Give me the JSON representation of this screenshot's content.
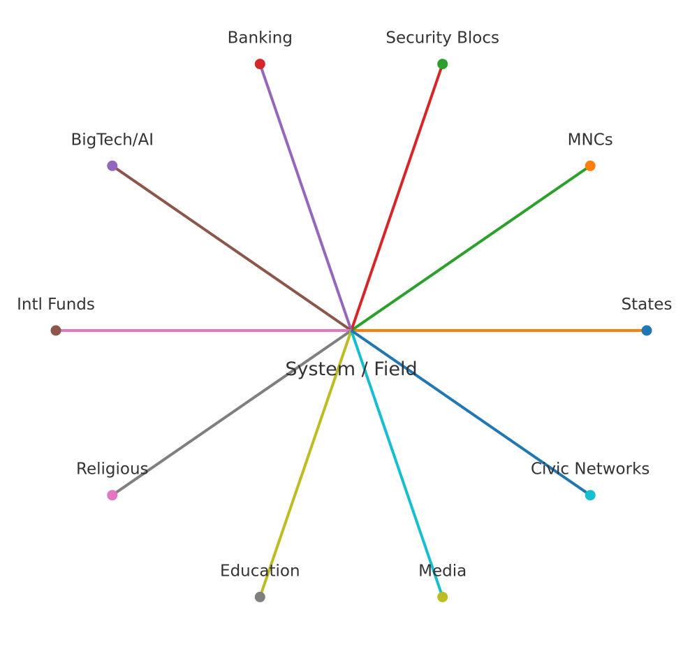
{
  "center": {
    "label": "System / Field"
  },
  "nodes": [
    {
      "id": "states",
      "label": "States",
      "dot_color": "#1f77b4",
      "line_color": "#ff7f0e"
    },
    {
      "id": "mncs",
      "label": "MNCs",
      "dot_color": "#ff7f0e",
      "line_color": "#2ca02c"
    },
    {
      "id": "security-blocs",
      "label": "Security Blocs",
      "dot_color": "#2ca02c",
      "line_color": "#d62728"
    },
    {
      "id": "banking",
      "label": "Banking",
      "dot_color": "#d62728",
      "line_color": "#9467bd"
    },
    {
      "id": "bigtech-ai",
      "label": "BigTech/AI",
      "dot_color": "#9467bd",
      "line_color": "#8c564b"
    },
    {
      "id": "intl-funds",
      "label": "Intl Funds",
      "dot_color": "#8c564b",
      "line_color": "#e377c2"
    },
    {
      "id": "religious",
      "label": "Religious",
      "dot_color": "#e377c2",
      "line_color": "#7f7f7f"
    },
    {
      "id": "education",
      "label": "Education",
      "dot_color": "#7f7f7f",
      "line_color": "#bcbd22"
    },
    {
      "id": "media",
      "label": "Media",
      "dot_color": "#bcbd22",
      "line_color": "#17becf"
    },
    {
      "id": "civic-networks",
      "label": "Civic Networks",
      "dot_color": "#17becf",
      "line_color": "#1f77b4"
    }
  ]
}
